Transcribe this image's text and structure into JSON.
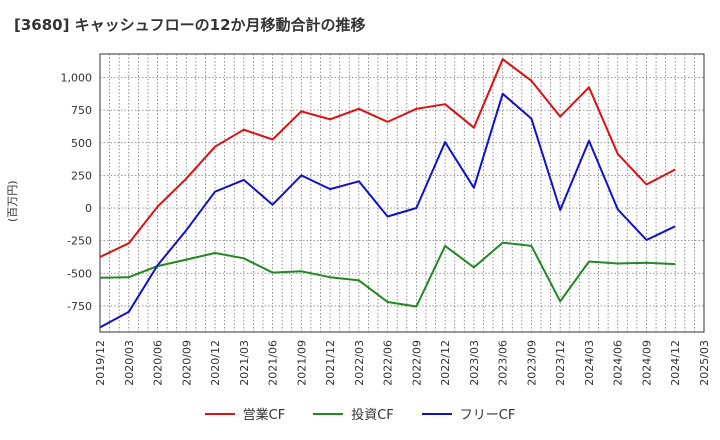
{
  "title": "[3680]  キャッシュフローの12か月移動合計の推移",
  "chart_data": {
    "type": "line",
    "title": "[3680]  キャッシュフローの12か月移動合計の推移",
    "ylabel": "(百万円)",
    "xlabel": "",
    "ylim": [
      -950,
      1180
    ],
    "yticks": [
      -750,
      -500,
      -250,
      0,
      250,
      500,
      750,
      1000
    ],
    "ytick_labels": [
      "-750",
      "-500",
      "-250",
      "0",
      "250",
      "500",
      "750",
      "1,000"
    ],
    "categories": [
      "2019/12",
      "2020/03",
      "2020/06",
      "2020/09",
      "2020/12",
      "2021/03",
      "2021/06",
      "2021/09",
      "2021/12",
      "2022/03",
      "2022/06",
      "2022/09",
      "2022/12",
      "2023/03",
      "2023/06",
      "2023/09",
      "2023/12",
      "2024/03",
      "2024/06",
      "2024/09",
      "2024/12",
      "2025/03"
    ],
    "grid": true,
    "legend_position": "bottom",
    "series": [
      {
        "name": "営業CF",
        "color": "#dd1111",
        "values": [
          -375,
          -270,
          10,
          225,
          470,
          600,
          525,
          740,
          680,
          760,
          660,
          760,
          795,
          615,
          1140,
          975,
          700,
          925,
          415,
          180,
          295,
          null
        ]
      },
      {
        "name": "投資CF",
        "color": "#228822",
        "values": [
          -535,
          -530,
          -445,
          -395,
          -345,
          -385,
          -495,
          -485,
          -530,
          -555,
          -720,
          -755,
          -290,
          -455,
          -265,
          -290,
          -715,
          -410,
          -425,
          -420,
          -430,
          null
        ]
      },
      {
        "name": "フリーCF",
        "color": "#1111cc",
        "values": [
          -915,
          -795,
          -440,
          -170,
          125,
          215,
          25,
          250,
          145,
          205,
          -65,
          0,
          505,
          155,
          875,
          685,
          -15,
          515,
          -10,
          -245,
          -140,
          null
        ]
      }
    ]
  }
}
